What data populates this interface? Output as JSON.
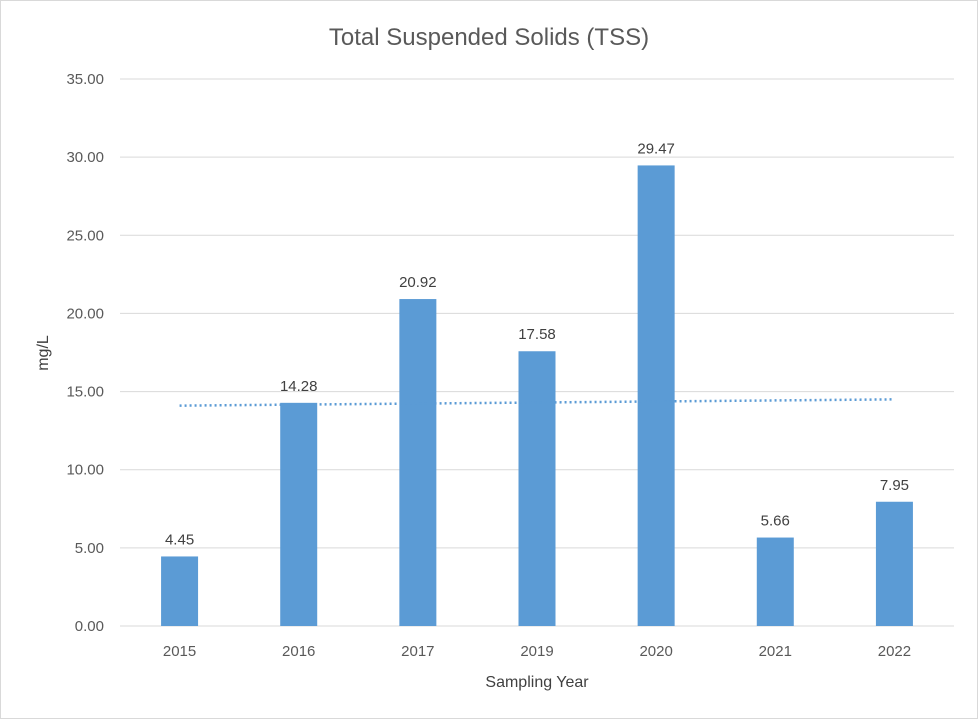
{
  "chart_data": {
    "type": "bar",
    "title": "Total Suspended Solids (TSS)",
    "xlabel": "Sampling Year",
    "ylabel": "mg/L",
    "categories": [
      "2015",
      "2016",
      "2017",
      "2019",
      "2020",
      "2021",
      "2022"
    ],
    "values": [
      4.45,
      14.28,
      20.92,
      17.58,
      29.47,
      5.66,
      7.95
    ],
    "data_labels": [
      "4.45",
      "14.28",
      "20.92",
      "17.58",
      "29.47",
      "5.66",
      "7.95"
    ],
    "ylim": [
      0,
      35
    ],
    "yticks": [
      "0.00",
      "5.00",
      "10.00",
      "15.00",
      "20.00",
      "25.00",
      "30.00",
      "35.00"
    ],
    "grid": true,
    "legend": "none",
    "trendline": {
      "type": "linear",
      "style": "dotted",
      "start": 14.1,
      "end": 14.5
    },
    "colors": {
      "bar": "#5b9bd5",
      "trendline": "#5b9bd5",
      "grid": "#d9d9d9"
    }
  }
}
